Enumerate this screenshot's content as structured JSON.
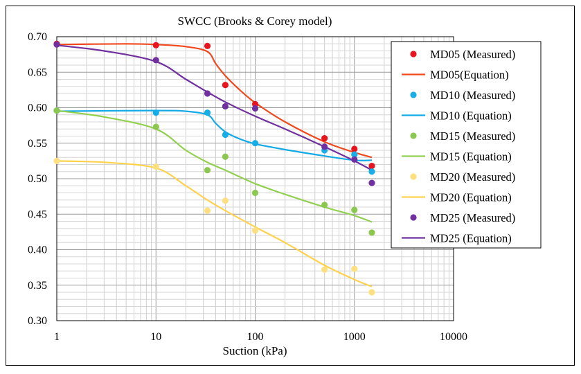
{
  "chart_data": {
    "type": "scatter",
    "title": "SWCC (Brooks & Corey model)",
    "xlabel": "Suction (kPa)",
    "ylabel": "",
    "x_scale": "log",
    "xlim": [
      1,
      10000
    ],
    "ylim": [
      0.3,
      0.7
    ],
    "x_ticks": [
      "1",
      "10",
      "100",
      "1000",
      "10000"
    ],
    "y_ticks": [
      "0.30",
      "0.35",
      "0.40",
      "0.45",
      "0.50",
      "0.55",
      "0.60",
      "0.65",
      "0.70"
    ],
    "grid": true,
    "legend_position": "right",
    "series": [
      {
        "name": "MD05 (Measured)",
        "kind": "scatter",
        "color": "#e8141e",
        "x": [
          1,
          10,
          33,
          50,
          100,
          500,
          1000,
          1500
        ],
        "y": [
          0.69,
          0.688,
          0.687,
          0.632,
          0.605,
          0.557,
          0.542,
          0.518
        ]
      },
      {
        "name": "MD05(Equation)",
        "kind": "line",
        "color": "#f04a1e",
        "x": [
          1,
          5,
          10,
          20,
          33,
          40,
          50,
          70,
          100,
          200,
          500,
          1000,
          1500
        ],
        "y": [
          0.689,
          0.69,
          0.689,
          0.686,
          0.679,
          0.662,
          0.645,
          0.625,
          0.607,
          0.58,
          0.552,
          0.537,
          0.53
        ]
      },
      {
        "name": "MD10 (Measured)",
        "kind": "scatter",
        "color": "#17aee8",
        "x": [
          1,
          10,
          33,
          50,
          100,
          500,
          1000,
          1500
        ],
        "y": [
          0.596,
          0.593,
          0.593,
          0.562,
          0.55,
          0.54,
          0.534,
          0.51
        ]
      },
      {
        "name": "MD10 (Equation)",
        "kind": "line",
        "color": "#14aae6",
        "x": [
          1,
          10,
          20,
          33,
          40,
          50,
          70,
          100,
          200,
          500,
          1000,
          1500
        ],
        "y": [
          0.595,
          0.596,
          0.595,
          0.59,
          0.578,
          0.566,
          0.556,
          0.549,
          0.541,
          0.532,
          0.526,
          0.526
        ]
      },
      {
        "name": "MD15 (Measured)",
        "kind": "scatter",
        "color": "#8cc850",
        "x": [
          1,
          10,
          33,
          50,
          100,
          500,
          1000,
          1500
        ],
        "y": [
          0.596,
          0.573,
          0.512,
          0.531,
          0.48,
          0.463,
          0.456,
          0.424
        ]
      },
      {
        "name": "MD15 (Equation)",
        "kind": "line",
        "color": "#92d050",
        "x": [
          1,
          3,
          10,
          20,
          33,
          50,
          100,
          200,
          500,
          1000,
          1500
        ],
        "y": [
          0.596,
          0.587,
          0.57,
          0.54,
          0.523,
          0.512,
          0.493,
          0.478,
          0.46,
          0.448,
          0.439
        ]
      },
      {
        "name": "MD20 (Measured)",
        "kind": "scatter",
        "color": "#ffe080",
        "x": [
          1,
          10,
          33,
          50,
          100,
          500,
          1000,
          1500
        ],
        "y": [
          0.525,
          0.517,
          0.455,
          0.469,
          0.427,
          0.372,
          0.373,
          0.34
        ]
      },
      {
        "name": "MD20 (Equation)",
        "kind": "line",
        "color": "#ffd24e",
        "x": [
          1,
          3,
          10,
          20,
          33,
          50,
          100,
          200,
          500,
          1000,
          1500
        ],
        "y": [
          0.525,
          0.523,
          0.515,
          0.49,
          0.47,
          0.455,
          0.432,
          0.41,
          0.378,
          0.358,
          0.348
        ]
      },
      {
        "name": "MD25 (Measured)",
        "kind": "scatter",
        "color": "#7030a0",
        "x": [
          1,
          10,
          33,
          50,
          100,
          500,
          1000,
          1500
        ],
        "y": [
          0.689,
          0.667,
          0.62,
          0.602,
          0.599,
          0.545,
          0.527,
          0.494
        ]
      },
      {
        "name": "MD25 (Equation)",
        "kind": "line",
        "color": "#7030a0",
        "x": [
          1,
          3,
          10,
          20,
          33,
          50,
          100,
          200,
          500,
          1000,
          1500
        ],
        "y": [
          0.688,
          0.68,
          0.665,
          0.64,
          0.622,
          0.608,
          0.588,
          0.57,
          0.545,
          0.525,
          0.512
        ]
      }
    ]
  }
}
